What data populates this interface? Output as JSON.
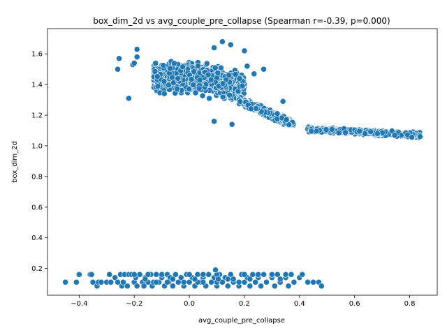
{
  "chart_data": {
    "type": "scatter",
    "title": "box_dim_2d vs avg_couple_pre_collapse (Spearman r=-0.39, p=0.000)",
    "xlabel": "avg_couple_pre_collapse",
    "ylabel": "box_dim_2d",
    "xlim": [
      -0.515,
      0.9
    ],
    "ylim": [
      0.025,
      1.765
    ],
    "xticks": [
      -0.4,
      -0.2,
      0.0,
      0.2,
      0.4,
      0.6,
      0.8
    ],
    "xtick_labels": [
      "−0.4",
      "−0.2",
      "0.0",
      "0.2",
      "0.4",
      "0.6",
      "0.8"
    ],
    "yticks": [
      0.2,
      0.4,
      0.6,
      0.8,
      1.0,
      1.2,
      1.4,
      1.6
    ],
    "ytick_labels": [
      "0.2",
      "0.4",
      "0.6",
      "0.8",
      "1.0",
      "1.2",
      "1.4",
      "1.6"
    ],
    "grid": false,
    "legend": "none",
    "marker_color": "#1f77b4",
    "marker_edge": "#ffffff",
    "series": [
      {
        "x": [
          -0.45,
          -0.41,
          -0.4,
          -0.36,
          -0.355,
          -0.35,
          -0.335,
          -0.33,
          -0.32,
          -0.3,
          -0.29,
          -0.285,
          -0.27,
          -0.26,
          -0.25,
          -0.245,
          -0.24,
          -0.235,
          -0.225,
          -0.22,
          -0.21,
          -0.2,
          -0.195,
          -0.19,
          -0.18,
          -0.17,
          -0.165,
          -0.16,
          -0.15,
          -0.14,
          -0.135,
          -0.13,
          -0.12,
          -0.11,
          -0.1,
          -0.09,
          -0.08,
          -0.075,
          -0.07,
          -0.06,
          -0.05,
          -0.04,
          -0.03,
          -0.02,
          -0.01,
          0.0,
          0.01,
          0.02,
          0.03,
          0.04,
          0.05,
          0.06,
          0.07,
          0.08,
          0.09,
          0.1,
          0.11,
          0.12,
          0.13,
          0.14,
          0.15,
          0.16,
          0.18,
          0.19,
          0.2,
          0.21,
          0.22,
          0.23,
          0.24,
          0.25,
          0.26,
          0.27,
          0.28,
          0.3,
          0.31,
          0.32,
          0.33,
          0.35,
          0.36,
          0.37,
          0.38,
          0.4,
          0.41,
          0.43,
          0.45,
          0.47,
          0.48,
          -0.2,
          -0.15,
          -0.1,
          -0.05,
          0.0,
          0.05,
          0.1,
          0.15,
          0.2,
          0.25,
          0.3,
          0.35,
          0.1,
          0.05,
          -0.08,
          0.12,
          0.08,
          -0.02,
          0.18,
          0.24,
          -0.12,
          0.28,
          0.03,
          0.095,
          0.105,
          0.16,
          -0.16,
          0.22,
          0.33,
          0.02,
          -0.06,
          0.14
        ],
        "y": [
          0.11,
          0.11,
          0.16,
          0.16,
          0.16,
          0.11,
          0.085,
          0.11,
          0.11,
          0.11,
          0.16,
          0.11,
          0.14,
          0.11,
          0.16,
          0.085,
          0.11,
          0.16,
          0.085,
          0.16,
          0.16,
          0.11,
          0.14,
          0.085,
          0.16,
          0.11,
          0.085,
          0.14,
          0.11,
          0.16,
          0.085,
          0.11,
          0.16,
          0.11,
          0.14,
          0.085,
          0.16,
          0.11,
          0.14,
          0.085,
          0.16,
          0.11,
          0.14,
          0.085,
          0.16,
          0.11,
          0.14,
          0.085,
          0.16,
          0.11,
          0.14,
          0.085,
          0.16,
          0.11,
          0.14,
          0.085,
          0.16,
          0.11,
          0.14,
          0.085,
          0.16,
          0.11,
          0.085,
          0.16,
          0.11,
          0.14,
          0.085,
          0.16,
          0.11,
          0.14,
          0.085,
          0.16,
          0.11,
          0.14,
          0.085,
          0.16,
          0.11,
          0.14,
          0.085,
          0.16,
          0.11,
          0.14,
          0.16,
          0.11,
          0.11,
          0.11,
          0.085,
          0.16,
          0.16,
          0.16,
          0.16,
          0.16,
          0.16,
          0.16,
          0.16,
          0.16,
          0.16,
          0.16,
          0.16,
          0.11,
          0.11,
          0.11,
          0.11,
          0.11,
          0.11,
          0.11,
          0.11,
          0.11,
          0.11,
          0.11,
          0.19,
          0.13,
          0.13,
          0.13,
          0.13,
          0.13,
          0.13,
          0.13,
          0.13
        ],
        "clusters": [
          {
            "label": "upper-dense",
            "x_range": [
              -0.15,
              0.2
            ],
            "y_range": [
              1.15,
              1.7
            ]
          },
          {
            "label": "upper-tail",
            "x_range": [
              0.2,
              0.4
            ],
            "y_range": [
              1.08,
              1.3
            ]
          },
          {
            "label": "right-band",
            "x_range": [
              0.43,
              0.84
            ],
            "y_range": [
              1.02,
              1.18
            ]
          },
          {
            "label": "bottom-band",
            "x_range": [
              -0.45,
              0.48
            ],
            "y_range": [
              0.085,
              0.19
            ]
          }
        ],
        "extra_points": [
          {
            "x": -0.26,
            "y": 1.5
          },
          {
            "x": -0.255,
            "y": 1.57
          },
          {
            "x": -0.22,
            "y": 1.31
          },
          {
            "x": -0.205,
            "y": 1.53
          },
          {
            "x": -0.2,
            "y": 1.54
          },
          {
            "x": -0.19,
            "y": 1.58
          },
          {
            "x": -0.19,
            "y": 1.63
          },
          {
            "x": 0.21,
            "y": 1.52
          },
          {
            "x": 0.235,
            "y": 1.47
          },
          {
            "x": 0.27,
            "y": 1.5
          },
          {
            "x": 0.2,
            "y": 1.62
          },
          {
            "x": 0.12,
            "y": 1.68
          },
          {
            "x": 0.15,
            "y": 1.66
          },
          {
            "x": 0.09,
            "y": 1.64
          },
          {
            "x": 0.34,
            "y": 1.29
          },
          {
            "x": 0.155,
            "y": 1.14
          },
          {
            "x": 0.09,
            "y": 1.16
          }
        ]
      }
    ]
  }
}
